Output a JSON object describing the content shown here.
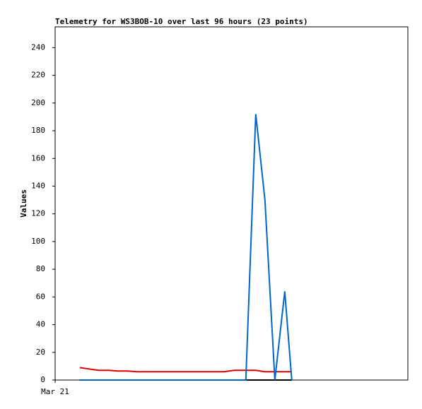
{
  "chart_data": {
    "type": "line",
    "title": "Telemetry for WS3BOB-10 over last 96 hours (23 points)",
    "y_label": "Values",
    "x": [
      6.7,
      9.2,
      11.9,
      14.6,
      17.1,
      19.8,
      22.3,
      25.0,
      27.7,
      30.2,
      32.9,
      35.4,
      38.1,
      40.8,
      43.3,
      46.0,
      48.7,
      51.9,
      54.6,
      57.1,
      59.8,
      62.5,
      64.4
    ],
    "series": [
      {
        "color": "#000000",
        "values": [
          0,
          0,
          0,
          0,
          0,
          0,
          0,
          0,
          0,
          0,
          0,
          0,
          0,
          0,
          0,
          0,
          0,
          0,
          0,
          0,
          0,
          0,
          0
        ]
      },
      {
        "color": "#e00000",
        "values": [
          9,
          8,
          7,
          7,
          6.5,
          6.5,
          6,
          6,
          6,
          6,
          6,
          6,
          6,
          6,
          6,
          6,
          7,
          7,
          7,
          6,
          6,
          6,
          6
        ]
      },
      {
        "color": "#0066cc",
        "values": [
          0,
          0,
          0,
          0,
          0,
          0,
          0,
          0,
          0,
          0,
          0,
          0,
          0,
          0,
          0,
          0,
          0,
          0,
          192,
          130,
          0,
          64,
          0
        ]
      }
    ],
    "xlim": [
      0,
      96
    ],
    "xticks": [
      {
        "value": 0,
        "label": "Mar 21"
      }
    ],
    "ylim": [
      0,
      255
    ],
    "yticks": [
      0,
      20,
      40,
      60,
      80,
      100,
      120,
      140,
      160,
      180,
      200,
      220,
      240
    ]
  }
}
